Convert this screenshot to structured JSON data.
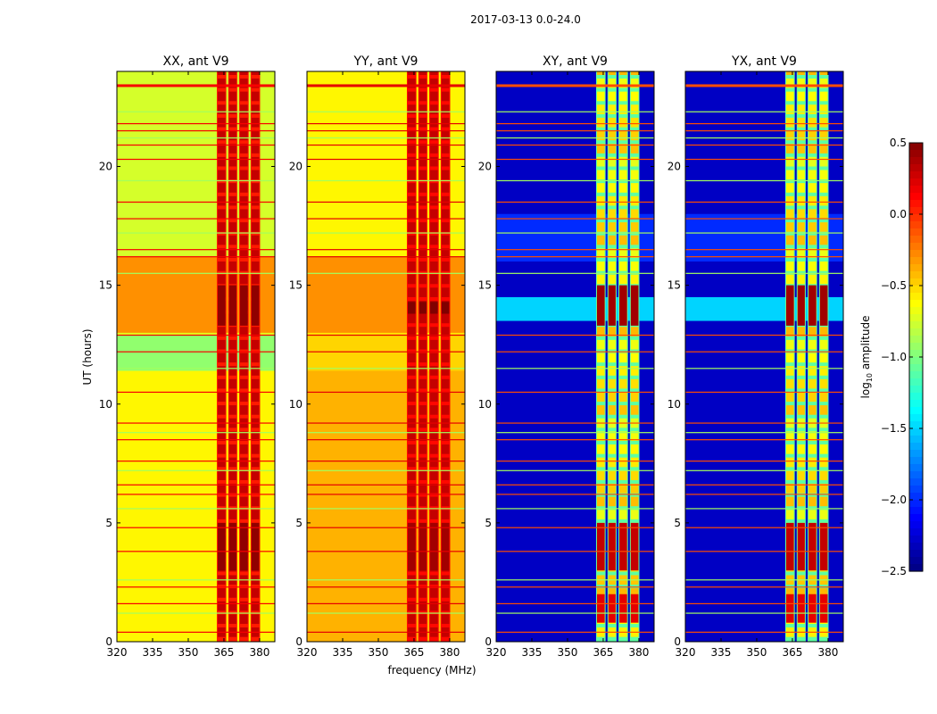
{
  "chart_data": {
    "type": "heatmap",
    "suptitle": "2017-03-13 0.0-24.0",
    "xlabel": "frequency (MHz)",
    "ylabel": "UT (hours)",
    "xlim": [
      320,
      386.4
    ],
    "ylim": [
      0,
      24
    ],
    "xticks": [
      320,
      335,
      350,
      365,
      380
    ],
    "yticks": [
      0,
      5,
      10,
      15,
      20
    ],
    "colormap": "jet",
    "colorbar": {
      "label": "log10 amplitude",
      "label_main": "log",
      "label_sub": "10",
      "label_rest": " amplitude",
      "range": [
        -2.5,
        0.5
      ],
      "ticks": [
        "0.5",
        "0.0",
        "−0.5",
        "−1.0",
        "−1.5",
        "−2.0",
        "−2.5"
      ],
      "tick_values": [
        0.5,
        0.0,
        -0.5,
        -1.0,
        -1.5,
        -2.0,
        -2.5
      ]
    },
    "rfi_band_columns_mhz": [
      [
        362,
        366
      ],
      [
        366.8,
        370.6
      ],
      [
        371.4,
        375.4
      ],
      [
        376.2,
        380.2
      ]
    ],
    "rfi_lines_hours": [
      23.4,
      22.3,
      21.8,
      21.5,
      21.2,
      20.9,
      20.3,
      19.4,
      18.5,
      17.8,
      17.2,
      16.5,
      16.2,
      15.5,
      12.9,
      12.2,
      11.5,
      10.5,
      9.2,
      8.8,
      8.5,
      7.6,
      7.2,
      6.6,
      6.2,
      5.6,
      4.8,
      3.8,
      2.6,
      2.3,
      1.6,
      1.2,
      0.4
    ],
    "panels": [
      {
        "title": "XX, ant V9",
        "base": -0.7,
        "segments": [
          [
            16.2,
            24,
            -0.75
          ],
          [
            13,
            16.2,
            -0.3
          ],
          [
            11.4,
            12.9,
            -0.95
          ],
          [
            0,
            11.4,
            -0.6
          ]
        ],
        "band_level": 0.05,
        "band_peaks": [
          [
            13.3,
            15,
            0.45
          ],
          [
            3,
            5,
            0.45
          ]
        ],
        "line_level": 0.15
      },
      {
        "title": "YY, ant V9",
        "base": -0.55,
        "segments": [
          [
            16.2,
            24,
            -0.6
          ],
          [
            13,
            16.2,
            -0.3
          ],
          [
            11.4,
            12.9,
            -0.5
          ],
          [
            0,
            11.4,
            -0.4
          ]
        ],
        "band_level": 0.1,
        "band_peaks": [
          [
            13.8,
            14.3,
            0.5
          ],
          [
            3,
            5,
            0.4
          ]
        ],
        "line_level": 0.2
      },
      {
        "title": "XY, ant V9",
        "base": -2.3,
        "segments": [
          [
            0,
            24,
            -2.3
          ],
          [
            13.5,
            14.5,
            -1.5
          ],
          [
            16,
            18,
            -2.0
          ]
        ],
        "band_level": -1.1,
        "band_peaks": [
          [
            13.3,
            15,
            0.4
          ],
          [
            3,
            5,
            0.3
          ],
          [
            0.8,
            2,
            0.2
          ]
        ],
        "line_level": -0.1
      },
      {
        "title": "YX, ant V9",
        "base": -2.3,
        "segments": [
          [
            0,
            24,
            -2.3
          ],
          [
            13.5,
            14.5,
            -1.5
          ],
          [
            16,
            18,
            -2.0
          ]
        ],
        "band_level": -1.1,
        "band_peaks": [
          [
            13.3,
            15,
            0.4
          ],
          [
            3,
            5,
            0.3
          ],
          [
            0.8,
            2,
            0.2
          ]
        ],
        "line_level": -0.1
      }
    ]
  }
}
